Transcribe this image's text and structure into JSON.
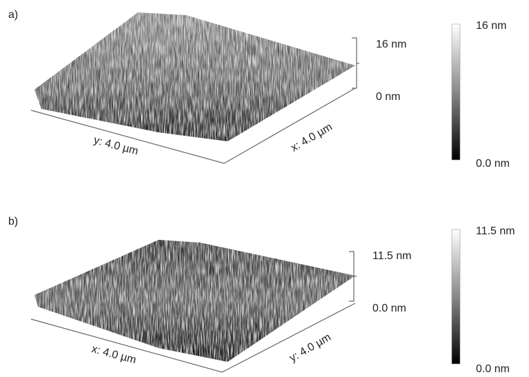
{
  "panels": [
    {
      "label": "a)",
      "z_top": "16 nm",
      "z_bottom": "0 nm",
      "left_axis": "y: 4.0 µm",
      "right_axis": "x: 4.0 µm",
      "scale_top": "16 nm",
      "scale_bottom": "0.0 nm"
    },
    {
      "label": "b)",
      "z_top": "11.5 nm",
      "z_bottom": "0.0 nm",
      "left_axis": "x: 4.0 µm",
      "right_axis": "y: 4.0 µm",
      "scale_top": "11.5 nm",
      "scale_bottom": "0.0 nm"
    }
  ]
}
